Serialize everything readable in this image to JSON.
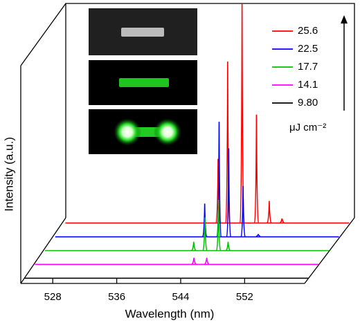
{
  "chart_data": {
    "type": "waterfall",
    "x_label": "Wavelength (nm)",
    "y_label": "Intensity (a.u.)",
    "xlim": [
      524,
      559.5
    ],
    "xticks": [
      528,
      536,
      544,
      552
    ],
    "ylim": [
      0,
      100
    ],
    "legend_unit": "μJ cm⁻²",
    "series": [
      {
        "name": "25.6",
        "color": "#ff0000",
        "x": [
          543.1,
          544.3,
          546.1,
          547.9,
          549.5,
          551.1
        ],
        "values": [
          29,
          73,
          99,
          49,
          10,
          2
        ]
      },
      {
        "name": "22.5",
        "color": "#0000ff",
        "x": [
          542.7,
          544.5,
          545.7,
          547.5,
          549.4
        ],
        "values": [
          15,
          52,
          40,
          23,
          1
        ]
      },
      {
        "name": "17.7",
        "color": "#00c000",
        "x": [
          542.6,
          544.0,
          545.7,
          546.9
        ],
        "values": [
          4,
          15,
          23,
          4
        ]
      },
      {
        "name": "14.1",
        "color": "#ff00ff",
        "x": [
          543.9,
          545.5
        ],
        "values": [
          3,
          3
        ]
      },
      {
        "name": "9.80",
        "color": "#000000",
        "x": [],
        "values": []
      }
    ]
  }
}
